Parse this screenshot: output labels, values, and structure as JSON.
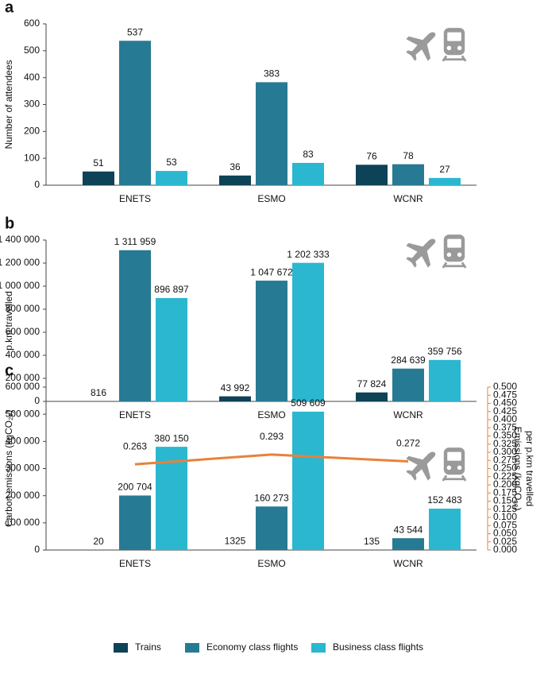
{
  "chart_data": [
    {
      "type": "bar",
      "label": "a",
      "ylabel": "Number of attendees",
      "categories": [
        "ENETS",
        "ESMO",
        "WCNR"
      ],
      "ylim": [
        0,
        600
      ],
      "yticks": [
        0,
        100,
        200,
        300,
        400,
        500,
        600
      ],
      "series": [
        {
          "name": "Trains",
          "color": "#0e4257",
          "values": [
            51,
            36,
            76
          ]
        },
        {
          "name": "Economy class flights",
          "color": "#277a93",
          "values": [
            537,
            383,
            78
          ]
        },
        {
          "name": "Business class flights",
          "color": "#2bb7d0",
          "values": [
            53,
            83,
            27
          ]
        }
      ]
    },
    {
      "type": "bar",
      "label": "b",
      "ylabel": "p.km travelled",
      "categories": [
        "ENETS",
        "ESMO",
        "WCNR"
      ],
      "ylim": [
        0,
        1400000
      ],
      "yticks": [
        0,
        {
          "value": 200000,
          "label": "200 000"
        },
        {
          "value": 400000,
          "label": "400 000"
        },
        {
          "value": 600000,
          "label": "600 000"
        },
        {
          "value": 800000,
          "label": "800 000"
        },
        {
          "value": 1000000,
          "label": "1 000 000"
        },
        {
          "value": 1200000,
          "label": "1 200 000"
        },
        {
          "value": 1400000,
          "label": "1 400 000"
        }
      ],
      "series": [
        {
          "color": "#0e4257",
          "values": [
            816,
            43992,
            77824
          ],
          "value_labels": [
            "816",
            "43 992",
            "77 824"
          ]
        },
        {
          "color": "#277a93",
          "values": [
            1311959,
            1047672,
            284639
          ],
          "value_labels": [
            "1 311 959",
            "1 047 672",
            "284 639"
          ]
        },
        {
          "color": "#2bb7d0",
          "values": [
            896897,
            1202333,
            359756
          ],
          "value_labels": [
            "896 897",
            "1 202 333",
            "359 756"
          ]
        }
      ]
    },
    {
      "type": "bar",
      "label": "c",
      "ylabel": "Carbon emissions (kgCO₂ₑ)",
      "y2label": [
        "Emissions (kgCO₂ₑ)",
        "per p.km travelled"
      ],
      "categories": [
        "ENETS",
        "ESMO",
        "WCNR"
      ],
      "ylim": [
        0,
        600000
      ],
      "yticks": [
        0,
        {
          "value": 100000,
          "label": "100 000"
        },
        {
          "value": 200000,
          "label": "200 000"
        },
        {
          "value": 300000,
          "label": "300 000"
        },
        {
          "value": 400000,
          "label": "400 000"
        },
        {
          "value": 500000,
          "label": "500 000"
        },
        {
          "value": 600000,
          "label": "600 000"
        }
      ],
      "y2lim": [
        0,
        0.5
      ],
      "y2ticks": [
        {
          "value": 0,
          "label": "0.000"
        },
        {
          "value": 0.025,
          "label": "0.025"
        },
        {
          "value": 0.05,
          "label": "0.050"
        },
        {
          "value": 0.075,
          "label": "0.075"
        },
        {
          "value": 0.1,
          "label": "0.100"
        },
        {
          "value": 0.125,
          "label": "0.125"
        },
        {
          "value": 0.15,
          "label": "0.150"
        },
        {
          "value": 0.175,
          "label": "0.175"
        },
        {
          "value": 0.2,
          "label": "0.200"
        },
        {
          "value": 0.225,
          "label": "0.225"
        },
        {
          "value": 0.25,
          "label": "0.250"
        },
        {
          "value": 0.275,
          "label": "0.275"
        },
        {
          "value": 0.3,
          "label": "0.300"
        },
        {
          "value": 0.325,
          "label": "0.325"
        },
        {
          "value": 0.35,
          "label": "0.350"
        },
        {
          "value": 0.375,
          "label": "0.375"
        },
        {
          "value": 0.4,
          "label": "0.400"
        },
        {
          "value": 0.425,
          "label": "0.425"
        },
        {
          "value": 0.45,
          "label": "0.450"
        },
        {
          "value": 0.475,
          "label": "0.475"
        },
        {
          "value": 0.5,
          "label": "0.500"
        }
      ],
      "y2color": "#e8823a",
      "series": [
        {
          "color": "#0e4257",
          "values": [
            20,
            1325,
            135
          ],
          "value_labels": [
            "20",
            "1325",
            "135"
          ]
        },
        {
          "color": "#277a93",
          "values": [
            200704,
            160273,
            43544
          ],
          "value_labels": [
            "200 704",
            "160 273",
            "43 544"
          ]
        },
        {
          "color": "#2bb7d0",
          "values": [
            380150,
            509609,
            152483
          ],
          "value_labels": [
            "380 150",
            "509 609",
            "152 483"
          ]
        },
        {
          "color": "#e8823a",
          "axis": "y2",
          "values": [
            0.263,
            0.293,
            0.272
          ]
        }
      ]
    }
  ]
}
